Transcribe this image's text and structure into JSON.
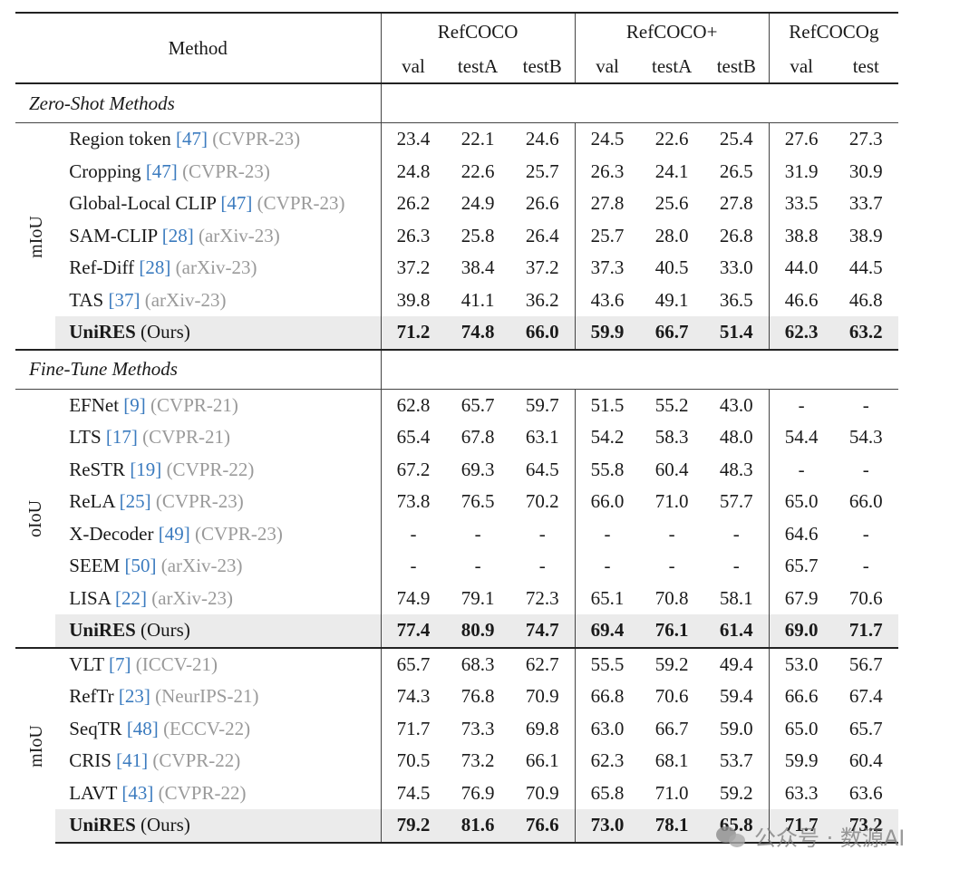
{
  "header": {
    "method": "Method",
    "groups": [
      "RefCOCO",
      "RefCOCO+",
      "RefCOCOg"
    ],
    "subcols": [
      "val",
      "testA",
      "testB",
      "val",
      "testA",
      "testB",
      "val",
      "test"
    ]
  },
  "sections": [
    {
      "metric": "mIoU",
      "label": "Zero-Shot Methods",
      "rows": [
        {
          "name": "Region token",
          "ref": "[47]",
          "venue": "(CVPR-23)",
          "values": [
            "23.4",
            "22.1",
            "24.6",
            "24.5",
            "22.6",
            "25.4",
            "27.6",
            "27.3"
          ]
        },
        {
          "name": "Cropping",
          "ref": "[47]",
          "venue": "(CVPR-23)",
          "values": [
            "24.8",
            "22.6",
            "25.7",
            "26.3",
            "24.1",
            "26.5",
            "31.9",
            "30.9"
          ]
        },
        {
          "name": "Global-Local CLIP",
          "ref": "[47]",
          "venue": "(CVPR-23)",
          "values": [
            "26.2",
            "24.9",
            "26.6",
            "27.8",
            "25.6",
            "27.8",
            "33.5",
            "33.7"
          ]
        },
        {
          "name": "SAM-CLIP",
          "ref": "[28]",
          "venue": "(arXiv-23)",
          "values": [
            "26.3",
            "25.8",
            "26.4",
            "25.7",
            "28.0",
            "26.8",
            "38.8",
            "38.9"
          ]
        },
        {
          "name": "Ref-Diff",
          "ref": "[28]",
          "venue": "(arXiv-23)",
          "values": [
            "37.2",
            "38.4",
            "37.2",
            "37.3",
            "40.5",
            "33.0",
            "44.0",
            "44.5"
          ]
        },
        {
          "name": "TAS",
          "ref": "[37]",
          "venue": "(arXiv-23)",
          "values": [
            "39.8",
            "41.1",
            "36.2",
            "43.6",
            "49.1",
            "36.5",
            "46.6",
            "46.8"
          ]
        },
        {
          "name": "UniRES",
          "suffix": "(Ours)",
          "ours": true,
          "values": [
            "71.2",
            "74.8",
            "66.0",
            "59.9",
            "66.7",
            "51.4",
            "62.3",
            "63.2"
          ]
        }
      ]
    },
    {
      "metric": "oIoU",
      "label": "Fine-Tune Methods",
      "rows": [
        {
          "name": "EFNet",
          "ref": "[9]",
          "venue": "(CVPR-21)",
          "values": [
            "62.8",
            "65.7",
            "59.7",
            "51.5",
            "55.2",
            "43.0",
            "-",
            "-"
          ]
        },
        {
          "name": "LTS",
          "ref": "[17]",
          "venue": "(CVPR-21)",
          "values": [
            "65.4",
            "67.8",
            "63.1",
            "54.2",
            "58.3",
            "48.0",
            "54.4",
            "54.3"
          ]
        },
        {
          "name": "ReSTR",
          "ref": "[19]",
          "venue": "(CVPR-22)",
          "values": [
            "67.2",
            "69.3",
            "64.5",
            "55.8",
            "60.4",
            "48.3",
            "-",
            "-"
          ]
        },
        {
          "name": "ReLA",
          "ref": "[25]",
          "venue": "(CVPR-23)",
          "values": [
            "73.8",
            "76.5",
            "70.2",
            "66.0",
            "71.0",
            "57.7",
            "65.0",
            "66.0"
          ]
        },
        {
          "name": "X-Decoder",
          "ref": "[49]",
          "venue": "(CVPR-23)",
          "values": [
            "-",
            "-",
            "-",
            "-",
            "-",
            "-",
            "64.6",
            "-"
          ]
        },
        {
          "name": "SEEM",
          "ref": "[50]",
          "venue": "(arXiv-23)",
          "values": [
            "-",
            "-",
            "-",
            "-",
            "-",
            "-",
            "65.7",
            "-"
          ]
        },
        {
          "name": "LISA",
          "ref": "[22]",
          "venue": "(arXiv-23)",
          "values": [
            "74.9",
            "79.1",
            "72.3",
            "65.1",
            "70.8",
            "58.1",
            "67.9",
            "70.6"
          ]
        },
        {
          "name": "UniRES",
          "suffix": "(Ours)",
          "ours": true,
          "values": [
            "77.4",
            "80.9",
            "74.7",
            "69.4",
            "76.1",
            "61.4",
            "69.0",
            "71.7"
          ]
        }
      ]
    },
    {
      "metric": "mIoU",
      "label": "",
      "rows": [
        {
          "name": "VLT",
          "ref": "[7]",
          "venue": "(ICCV-21)",
          "values": [
            "65.7",
            "68.3",
            "62.7",
            "55.5",
            "59.2",
            "49.4",
            "53.0",
            "56.7"
          ]
        },
        {
          "name": "RefTr",
          "ref": "[23]",
          "venue": "(NeurIPS-21)",
          "values": [
            "74.3",
            "76.8",
            "70.9",
            "66.8",
            "70.6",
            "59.4",
            "66.6",
            "67.4"
          ]
        },
        {
          "name": "SeqTR",
          "ref": "[48]",
          "venue": "(ECCV-22)",
          "values": [
            "71.7",
            "73.3",
            "69.8",
            "63.0",
            "66.7",
            "59.0",
            "65.0",
            "65.7"
          ]
        },
        {
          "name": "CRIS",
          "ref": "[41]",
          "venue": "(CVPR-22)",
          "values": [
            "70.5",
            "73.2",
            "66.1",
            "62.3",
            "68.1",
            "53.7",
            "59.9",
            "60.4"
          ]
        },
        {
          "name": "LAVT",
          "ref": "[43]",
          "venue": "(CVPR-22)",
          "values": [
            "74.5",
            "76.9",
            "70.9",
            "65.8",
            "71.0",
            "59.2",
            "63.3",
            "63.6"
          ]
        },
        {
          "name": "UniRES",
          "suffix": "(Ours)",
          "ours": true,
          "values": [
            "79.2",
            "81.6",
            "76.6",
            "73.0",
            "78.1",
            "65.8",
            "71.7",
            "73.2"
          ]
        }
      ]
    }
  ],
  "watermark": "公众号 · 数源AI"
}
